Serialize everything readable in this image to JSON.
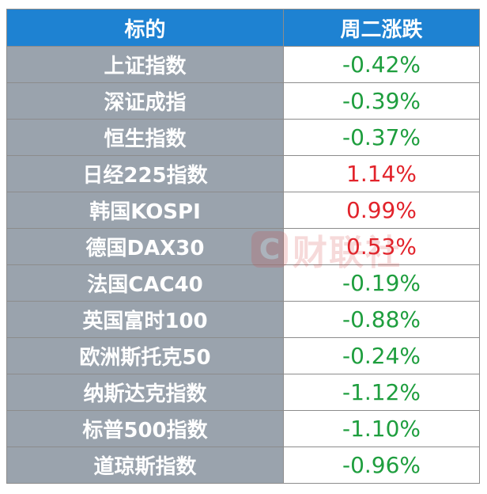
{
  "header": {
    "col_name": "标的",
    "col_change": "周二涨跌"
  },
  "rows": [
    {
      "name": "上证指数",
      "change": "-0.42%",
      "direction": "down"
    },
    {
      "name": "深证成指",
      "change": "-0.39%",
      "direction": "down"
    },
    {
      "name": "恒生指数",
      "change": "-0.37%",
      "direction": "down"
    },
    {
      "name": "日经225指数",
      "change": "1.14%",
      "direction": "up"
    },
    {
      "name": "韩国KOSPI",
      "change": "0.99%",
      "direction": "up"
    },
    {
      "name": "德国DAX30",
      "change": "0.53%",
      "direction": "up"
    },
    {
      "name": "法国CAC40",
      "change": "-0.19%",
      "direction": "down"
    },
    {
      "name": "英国富时100",
      "change": "-0.88%",
      "direction": "down"
    },
    {
      "name": "欧洲斯托克50",
      "change": "-0.24%",
      "direction": "down"
    },
    {
      "name": "纳斯达克指数",
      "change": "-1.12%",
      "direction": "down"
    },
    {
      "name": "标普500指数",
      "change": "-1.10%",
      "direction": "down"
    },
    {
      "name": "道琼斯指数",
      "change": "-0.96%",
      "direction": "down"
    }
  ],
  "colors": {
    "header_bg": "#1e82d2",
    "name_bg": "#9aa3ad",
    "down": "#1e9e3e",
    "up": "#e2232b"
  },
  "watermark": {
    "logo_letter": "C",
    "text": "财联社"
  }
}
